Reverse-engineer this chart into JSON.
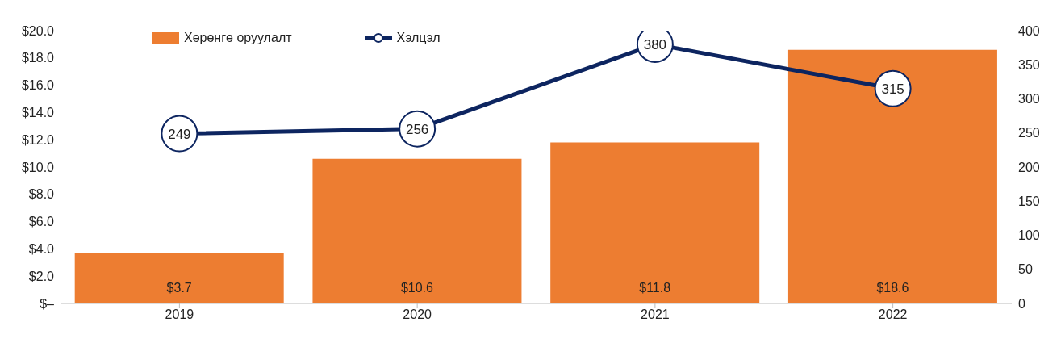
{
  "chart_data": {
    "type": "bar",
    "categories": [
      "2019",
      "2020",
      "2021",
      "2022"
    ],
    "series": [
      {
        "name": "Хөрөнгө оруулалт",
        "color": "#ed7d31",
        "values": [
          3.7,
          10.6,
          11.8,
          18.6
        ],
        "value_labels": [
          "$3.7",
          "$10.6",
          "$11.8",
          "$18.6"
        ]
      },
      {
        "name": "Хэлцэл",
        "type": "line",
        "axis": "y2",
        "color": "#0d2560",
        "values": [
          249,
          256,
          380,
          315
        ],
        "value_labels": [
          "249",
          "256",
          "380",
          "315"
        ]
      }
    ],
    "ylim": [
      0,
      20
    ],
    "yticks": [
      {
        "value": 0,
        "label": "$–"
      },
      {
        "value": 2,
        "label": "$2.0"
      },
      {
        "value": 4,
        "label": "$4.0"
      },
      {
        "value": 6,
        "label": "$6.0"
      },
      {
        "value": 8,
        "label": "$8.0"
      },
      {
        "value": 10,
        "label": "$10.0"
      },
      {
        "value": 12,
        "label": "$12.0"
      },
      {
        "value": 14,
        "label": "$14.0"
      },
      {
        "value": 16,
        "label": "$16.0"
      },
      {
        "value": 18,
        "label": "$18.0"
      },
      {
        "value": 20,
        "label": "$20.0"
      }
    ],
    "y2lim": [
      0,
      400
    ],
    "y2ticks": [
      0,
      50,
      100,
      150,
      200,
      250,
      300,
      350,
      400
    ],
    "grid": false,
    "legend": "top left",
    "marker": "circle",
    "line_style": "solid"
  }
}
